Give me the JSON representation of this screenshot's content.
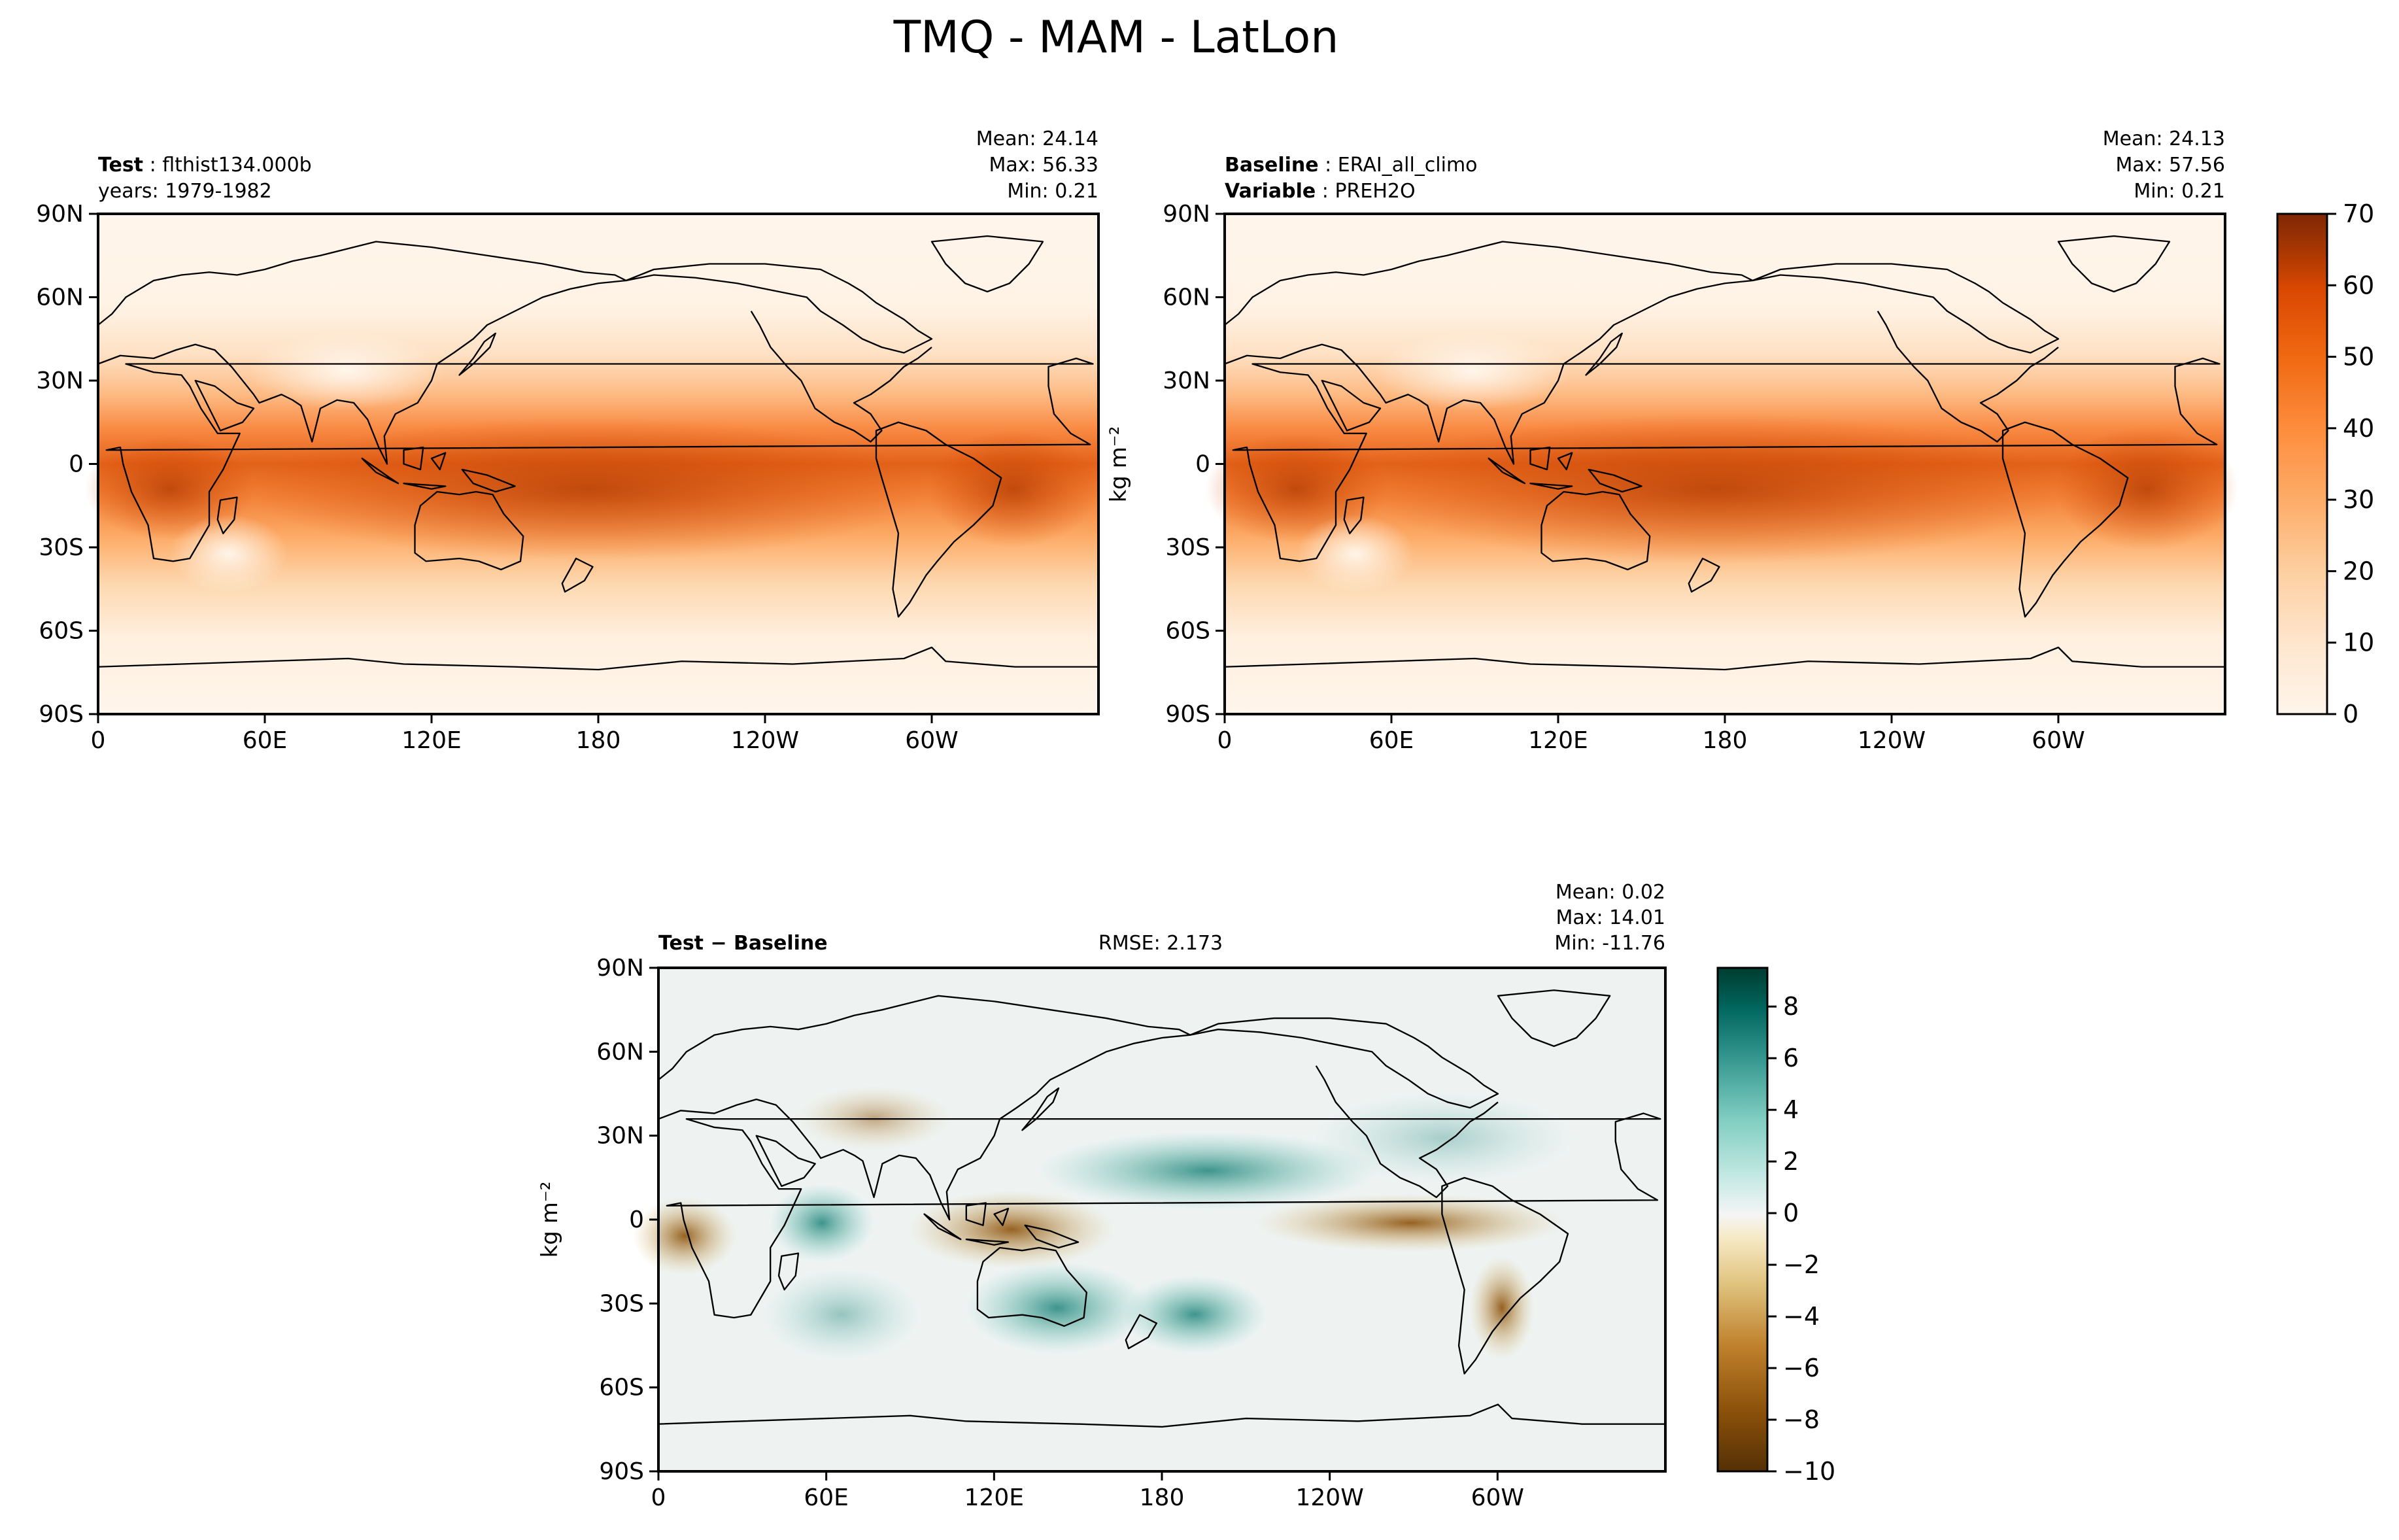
{
  "figure": {
    "title": "TMQ - MAM - LatLon"
  },
  "panels": {
    "test": {
      "label_bold": "Test",
      "label_value": "flthist134.000b",
      "line2": "years: 1979-1982",
      "stats": {
        "mean": "Mean: 24.14",
        "max": "Max: 56.33",
        "min": "Min:  0.21"
      },
      "ylabel": ""
    },
    "baseline": {
      "label_bold": "Baseline",
      "label_value": "ERAI_all_climo",
      "line2_bold": "Variable",
      "line2_value": "PREH2O",
      "stats": {
        "mean": "Mean: 24.13",
        "max": "Max: 57.56",
        "min": "Min:  0.21"
      },
      "ylabel": "kg m⁻²"
    },
    "diff": {
      "label_bold": "Test − Baseline",
      "rmse": "RMSE: 2.173",
      "stats": {
        "mean": "Mean:  0.02",
        "max": "Max: 14.01",
        "min": "Min: -11.76"
      },
      "ylabel": "kg m⁻²"
    }
  },
  "axes": {
    "lat_ticks": [
      "90N",
      "60N",
      "30N",
      "0",
      "30S",
      "60S",
      "90S"
    ],
    "lon_ticks": [
      "0",
      "60E",
      "120E",
      "180",
      "120W",
      "60W"
    ]
  },
  "colorbars": {
    "main": {
      "ticks": [
        "0",
        "10",
        "20",
        "30",
        "40",
        "50",
        "60",
        "70"
      ],
      "range": [
        0,
        70
      ],
      "colors": [
        "#fff5eb",
        "#fee6ce",
        "#fdd0a2",
        "#fdae6b",
        "#fd8d3c",
        "#f16913",
        "#d94801",
        "#a63603",
        "#7f2704"
      ]
    },
    "diff": {
      "ticks": [
        "8",
        "6",
        "4",
        "2",
        "0",
        "−2",
        "−4",
        "−6",
        "−8",
        "−10"
      ],
      "range": [
        -10,
        9.5
      ],
      "colors": [
        "#543005",
        "#8c510a",
        "#bf812d",
        "#dfc27d",
        "#f6e8c3",
        "#f5f5f5",
        "#c7eae5",
        "#80cdc1",
        "#35978f",
        "#01665e",
        "#003c30"
      ]
    }
  },
  "chart_data": [
    {
      "type": "heatmap",
      "title": "TMQ - MAM - LatLon",
      "name": "flthist134.000b",
      "years": "1979-1982",
      "mean": 24.14,
      "max": 56.33,
      "min": 0.21,
      "lat_range": [
        -90,
        90
      ],
      "lon_range": [
        0,
        360
      ],
      "color_range": [
        0,
        70
      ]
    },
    {
      "type": "heatmap",
      "name": "ERAI_all_climo",
      "variable": "PREH2O",
      "mean": 24.13,
      "max": 57.56,
      "min": 0.21,
      "lat_range": [
        -90,
        90
      ],
      "lon_range": [
        0,
        360
      ],
      "color_range": [
        0,
        70
      ],
      "ylabel": "kg m⁻²"
    },
    {
      "type": "heatmap",
      "name": "Test − Baseline",
      "rmse": 2.173,
      "mean": 0.02,
      "max": 14.01,
      "min": -11.76,
      "lat_range": [
        -90,
        90
      ],
      "lon_range": [
        0,
        360
      ],
      "color_range": [
        -10,
        9.5
      ],
      "ylabel": "kg m⁻²"
    }
  ]
}
